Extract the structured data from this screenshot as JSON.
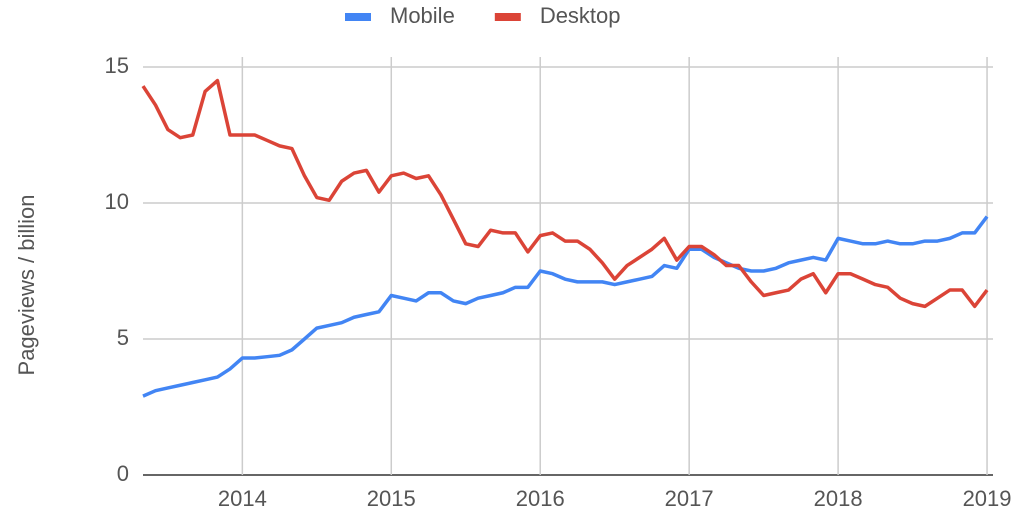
{
  "chart_data": {
    "type": "line",
    "y_label": "Pageviews / billion",
    "x": [
      2013.333,
      2013.417,
      2013.5,
      2013.583,
      2013.667,
      2013.75,
      2013.833,
      2013.917,
      2014,
      2014.083,
      2014.167,
      2014.25,
      2014.333,
      2014.417,
      2014.5,
      2014.583,
      2014.667,
      2014.75,
      2014.833,
      2014.917,
      2015,
      2015.083,
      2015.167,
      2015.25,
      2015.333,
      2015.417,
      2015.5,
      2015.583,
      2015.667,
      2015.75,
      2015.833,
      2015.917,
      2016,
      2016.083,
      2016.167,
      2016.25,
      2016.333,
      2016.417,
      2016.5,
      2016.583,
      2016.667,
      2016.75,
      2016.833,
      2016.917,
      2017,
      2017.083,
      2017.167,
      2017.25,
      2017.333,
      2017.417,
      2017.5,
      2017.583,
      2017.667,
      2017.75,
      2017.833,
      2017.917,
      2018,
      2018.083,
      2018.167,
      2018.25,
      2018.333,
      2018.417,
      2018.5,
      2018.583,
      2018.667,
      2018.75,
      2018.833,
      2018.917,
      2019
    ],
    "series": [
      {
        "name": "Mobile",
        "color": "#4285f4",
        "values": [
          2.9,
          3.1,
          3.2,
          3.3,
          3.4,
          3.5,
          3.6,
          3.9,
          4.3,
          4.3,
          4.35,
          4.4,
          4.6,
          5.0,
          5.4,
          5.5,
          5.6,
          5.8,
          5.9,
          6.0,
          6.6,
          6.5,
          6.4,
          6.7,
          6.7,
          6.4,
          6.3,
          6.5,
          6.6,
          6.7,
          6.9,
          6.9,
          7.5,
          7.4,
          7.2,
          7.1,
          7.1,
          7.1,
          7.0,
          7.1,
          7.2,
          7.3,
          7.7,
          7.6,
          8.3,
          8.3,
          8.0,
          7.8,
          7.6,
          7.5,
          7.5,
          7.6,
          7.8,
          7.9,
          8.0,
          7.9,
          8.7,
          8.6,
          8.5,
          8.5,
          8.6,
          8.5,
          8.5,
          8.6,
          8.6,
          8.7,
          8.9,
          8.9,
          9.5
        ]
      },
      {
        "name": "Desktop",
        "color": "#db4437",
        "values": [
          14.3,
          13.6,
          12.7,
          12.4,
          12.5,
          14.1,
          14.5,
          12.5,
          12.5,
          12.5,
          12.3,
          12.1,
          12.0,
          11.0,
          10.2,
          10.1,
          10.8,
          11.1,
          11.2,
          10.4,
          11.0,
          11.1,
          10.9,
          11.0,
          10.3,
          9.4,
          8.5,
          8.4,
          9.0,
          8.9,
          8.9,
          8.2,
          8.8,
          8.9,
          8.6,
          8.6,
          8.3,
          7.8,
          7.2,
          7.7,
          8.0,
          8.3,
          8.7,
          7.9,
          8.4,
          8.4,
          8.1,
          7.7,
          7.7,
          7.1,
          6.6,
          6.7,
          6.8,
          7.2,
          7.4,
          6.7,
          7.4,
          7.4,
          7.2,
          7.0,
          6.9,
          6.5,
          6.3,
          6.2,
          6.5,
          6.8,
          6.8,
          6.2,
          6.8
        ]
      }
    ],
    "xlim": [
      2013.333,
      2019.04
    ],
    "xticks": [
      2014,
      2015,
      2016,
      2017,
      2018,
      2019
    ],
    "ylim": [
      0,
      15
    ],
    "yticks": [
      0,
      5,
      10,
      15
    ],
    "grid": true,
    "legend": "top"
  }
}
